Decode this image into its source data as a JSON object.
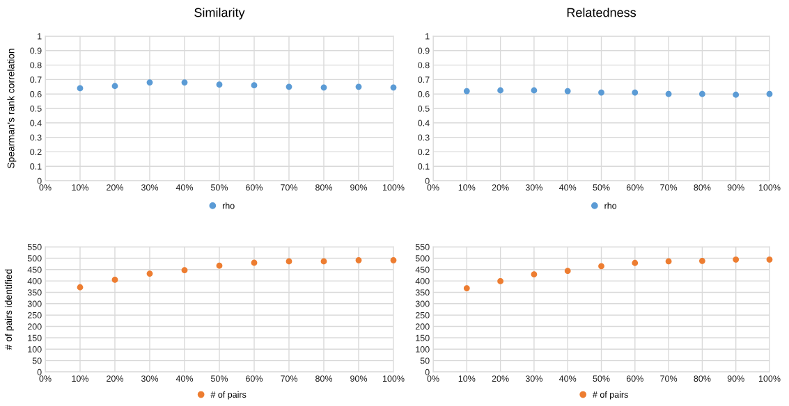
{
  "chart_data": [
    {
      "type": "scatter",
      "title": "Similarity",
      "ylabel": "Spearman's rank correlation",
      "x": [
        0.1,
        0.2,
        0.3,
        0.4,
        0.5,
        0.6,
        0.7,
        0.8,
        0.9,
        1.0
      ],
      "series": [
        {
          "name": "rho",
          "color": "#5b9bd5",
          "values": [
            0.64,
            0.655,
            0.68,
            0.68,
            0.665,
            0.66,
            0.65,
            0.645,
            0.65,
            0.645
          ]
        }
      ],
      "xlim": [
        0,
        1
      ],
      "xticks": [
        {
          "value": 0,
          "label": "0%"
        },
        {
          "value": 0.1,
          "label": "10%"
        },
        {
          "value": 0.2,
          "label": "20%"
        },
        {
          "value": 0.3,
          "label": "30%"
        },
        {
          "value": 0.4,
          "label": "40%"
        },
        {
          "value": 0.5,
          "label": "50%"
        },
        {
          "value": 0.6,
          "label": "60%"
        },
        {
          "value": 0.7,
          "label": "70%"
        },
        {
          "value": 0.8,
          "label": "80%"
        },
        {
          "value": 0.9,
          "label": "90%"
        },
        {
          "value": 1,
          "label": "100%"
        }
      ],
      "ylim": [
        0,
        1
      ],
      "yticks": [
        0,
        0.1,
        0.2,
        0.3,
        0.4,
        0.5,
        0.6,
        0.7,
        0.8,
        0.9,
        1
      ],
      "grid": true,
      "legend": "bottom",
      "marker": "circle"
    },
    {
      "type": "scatter",
      "title": "Relatedness",
      "x": [
        0.1,
        0.2,
        0.3,
        0.4,
        0.5,
        0.6,
        0.7,
        0.8,
        0.9,
        1.0
      ],
      "series": [
        {
          "name": "rho",
          "color": "#5b9bd5",
          "values": [
            0.62,
            0.625,
            0.625,
            0.62,
            0.61,
            0.61,
            0.6,
            0.6,
            0.595,
            0.6
          ]
        }
      ],
      "xlim": [
        0,
        1
      ],
      "xticks": [
        {
          "value": 0,
          "label": "0%"
        },
        {
          "value": 0.1,
          "label": "10%"
        },
        {
          "value": 0.2,
          "label": "20%"
        },
        {
          "value": 0.3,
          "label": "30%"
        },
        {
          "value": 0.4,
          "label": "40%"
        },
        {
          "value": 0.5,
          "label": "50%"
        },
        {
          "value": 0.6,
          "label": "60%"
        },
        {
          "value": 0.7,
          "label": "70%"
        },
        {
          "value": 0.8,
          "label": "80%"
        },
        {
          "value": 0.9,
          "label": "90%"
        },
        {
          "value": 1,
          "label": "100%"
        }
      ],
      "ylim": [
        0,
        1
      ],
      "yticks": [
        0,
        0.1,
        0.2,
        0.3,
        0.4,
        0.5,
        0.6,
        0.7,
        0.8,
        0.9,
        1
      ],
      "grid": true,
      "legend": "bottom",
      "marker": "circle"
    },
    {
      "type": "scatter",
      "ylabel": "# of pairs identified",
      "x": [
        0.1,
        0.2,
        0.3,
        0.4,
        0.5,
        0.6,
        0.7,
        0.8,
        0.9,
        1.0
      ],
      "series": [
        {
          "name": "# of pairs",
          "color": "#ed7d31",
          "values": [
            372,
            405,
            432,
            447,
            467,
            480,
            486,
            486,
            491,
            491
          ]
        }
      ],
      "xlim": [
        0,
        1
      ],
      "xticks": [
        {
          "value": 0,
          "label": "0%"
        },
        {
          "value": 0.1,
          "label": "10%"
        },
        {
          "value": 0.2,
          "label": "20%"
        },
        {
          "value": 0.3,
          "label": "30%"
        },
        {
          "value": 0.4,
          "label": "40%"
        },
        {
          "value": 0.5,
          "label": "50%"
        },
        {
          "value": 0.6,
          "label": "60%"
        },
        {
          "value": 0.7,
          "label": "70%"
        },
        {
          "value": 0.8,
          "label": "80%"
        },
        {
          "value": 0.9,
          "label": "90%"
        },
        {
          "value": 1,
          "label": "100%"
        }
      ],
      "ylim": [
        0,
        550
      ],
      "yticks": [
        0,
        50,
        100,
        150,
        200,
        250,
        300,
        350,
        400,
        450,
        500,
        550
      ],
      "grid": true,
      "legend": "bottom",
      "marker": "circle"
    },
    {
      "type": "scatter",
      "x": [
        0.1,
        0.2,
        0.3,
        0.4,
        0.5,
        0.6,
        0.7,
        0.8,
        0.9,
        1.0
      ],
      "series": [
        {
          "name": "# of pairs",
          "color": "#ed7d31",
          "values": [
            368,
            399,
            429,
            444,
            465,
            479,
            486,
            488,
            494,
            494
          ]
        }
      ],
      "xlim": [
        0,
        1
      ],
      "xticks": [
        {
          "value": 0,
          "label": "0%"
        },
        {
          "value": 0.1,
          "label": "10%"
        },
        {
          "value": 0.2,
          "label": "20%"
        },
        {
          "value": 0.3,
          "label": "30%"
        },
        {
          "value": 0.4,
          "label": "40%"
        },
        {
          "value": 0.5,
          "label": "50%"
        },
        {
          "value": 0.6,
          "label": "60%"
        },
        {
          "value": 0.7,
          "label": "70%"
        },
        {
          "value": 0.8,
          "label": "80%"
        },
        {
          "value": 0.9,
          "label": "90%"
        },
        {
          "value": 1,
          "label": "100%"
        }
      ],
      "ylim": [
        0,
        550
      ],
      "yticks": [
        0,
        50,
        100,
        150,
        200,
        250,
        300,
        350,
        400,
        450,
        500,
        550
      ],
      "grid": true,
      "legend": "bottom",
      "marker": "circle"
    }
  ]
}
